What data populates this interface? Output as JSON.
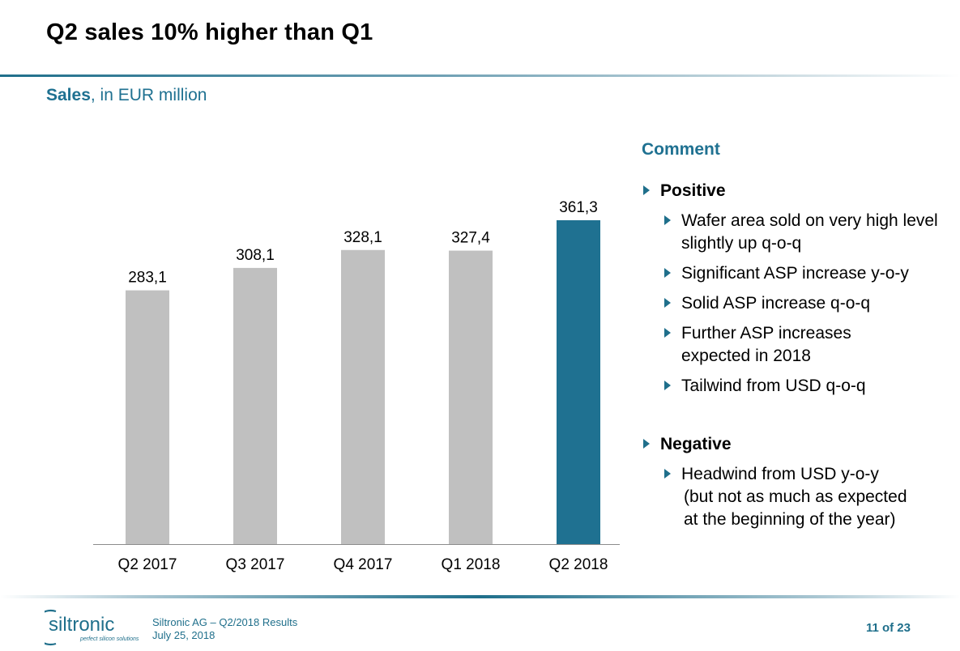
{
  "slide": {
    "title": "Q2 sales 10% higher than Q1",
    "subtitle_strong": "Sales",
    "subtitle_rest": ", in EUR million"
  },
  "chart_data": {
    "type": "bar",
    "categories": [
      "Q2 2017",
      "Q3 2017",
      "Q4 2017",
      "Q1 2018",
      "Q2 2018"
    ],
    "values": [
      283.1,
      308.1,
      328.1,
      327.4,
      361.3
    ],
    "value_labels": [
      "283,1",
      "308,1",
      "328,1",
      "327,4",
      "361,3"
    ],
    "highlight_index": 4,
    "colors": {
      "default": "#c0c0c0",
      "highlight": "#1f7191",
      "axis": "#8c8c8c"
    },
    "title": "",
    "xlabel": "",
    "ylabel": "",
    "ylim": [
      0,
      361.3
    ],
    "grid": false,
    "legend": "none"
  },
  "comment": {
    "heading": "Comment",
    "positive": {
      "label": "Positive",
      "items": [
        "Wafer area sold on very high level slightly up q-o-q",
        "Significant ASP increase y-o-y",
        "Solid ASP increase q-o-q",
        "Further ASP increases expected in 2018",
        "Tailwind from USD q-o-q"
      ]
    },
    "negative": {
      "label": "Negative",
      "items": [
        "Headwind from USD y-o-y",
        "(but not as much as expected",
        "at the beginning of the year)"
      ]
    }
  },
  "footer": {
    "logo_word": "siltronic",
    "logo_tagline": "perfect silicon solutions",
    "company_line": "Siltronic AG – Q2/2018 Results",
    "date_line": "July 25, 2018",
    "page": "11 of 23"
  }
}
